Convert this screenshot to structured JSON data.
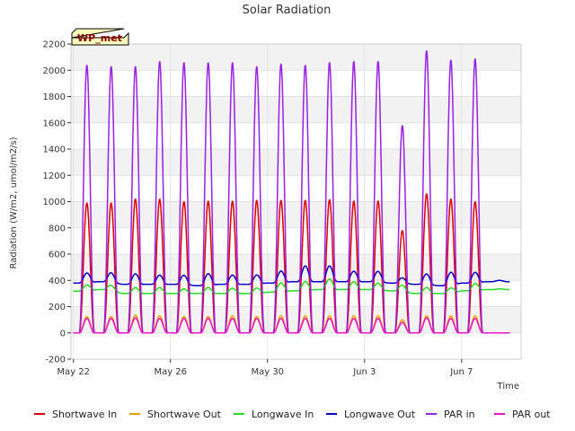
{
  "chart_data": {
    "type": "line",
    "title": "Solar Radiation",
    "xlabel": "Time",
    "ylabel": "Radiation (W/m2, umol/m2/s)",
    "badge": "WP_met",
    "ylim": [
      -200,
      2200
    ],
    "yticks": [
      -200,
      0,
      200,
      400,
      600,
      800,
      1000,
      1200,
      1400,
      1600,
      1800,
      2000,
      2200
    ],
    "xlim": [
      "2022-05-22",
      "2022-06-09"
    ],
    "xticks": [
      {
        "date": "2022-05-22",
        "label": "May 22"
      },
      {
        "date": "2022-05-26",
        "label": "May 26"
      },
      {
        "date": "2022-05-30",
        "label": "May 30"
      },
      {
        "date": "2022-06-03",
        "label": "Jun 3"
      },
      {
        "date": "2022-06-07",
        "label": "Jun 7"
      }
    ],
    "grid": true,
    "legend_position": "bottom",
    "days": [
      "2022-05-22",
      "2022-05-23",
      "2022-05-24",
      "2022-05-25",
      "2022-05-26",
      "2022-05-27",
      "2022-05-28",
      "2022-05-29",
      "2022-05-30",
      "2022-05-31",
      "2022-06-01",
      "2022-06-02",
      "2022-06-03",
      "2022-06-04",
      "2022-06-05",
      "2022-06-06",
      "2022-06-07",
      "2022-06-08"
    ],
    "series": [
      {
        "name": "Shortwave In",
        "color": "#dd0000",
        "night": 0,
        "daily_peak": [
          990,
          990,
          1020,
          1020,
          1000,
          1005,
          1005,
          1010,
          1010,
          1010,
          1015,
          1005,
          1005,
          780,
          1060,
          1020,
          1000,
          0
        ]
      },
      {
        "name": "Shortwave Out",
        "color": "#f0a000",
        "night": 0,
        "daily_peak": [
          125,
          125,
          135,
          130,
          125,
          125,
          130,
          125,
          130,
          130,
          130,
          130,
          130,
          100,
          130,
          130,
          130,
          0
        ]
      },
      {
        "name": "Longwave In",
        "color": "#22dd22",
        "daily_night": [
          318,
          330,
          300,
          300,
          300,
          300,
          300,
          300,
          310,
          320,
          330,
          330,
          330,
          320,
          300,
          300,
          320,
          330
        ],
        "daily_peak": [
          365,
          365,
          345,
          345,
          335,
          345,
          340,
          340,
          380,
          390,
          410,
          390,
          380,
          365,
          345,
          340,
          375,
          335
        ]
      },
      {
        "name": "Longwave Out",
        "color": "#0000cc",
        "daily_night": [
          380,
          390,
          370,
          370,
          370,
          360,
          370,
          370,
          380,
          390,
          390,
          390,
          390,
          380,
          370,
          360,
          380,
          390
        ],
        "daily_peak": [
          455,
          460,
          450,
          440,
          440,
          450,
          440,
          440,
          470,
          510,
          510,
          470,
          470,
          420,
          450,
          460,
          460,
          400
        ]
      },
      {
        "name": "PAR in",
        "color": "#9b1fe0",
        "night": 0,
        "daily_peak": [
          2040,
          2030,
          2030,
          2070,
          2060,
          2060,
          2060,
          2030,
          2050,
          2040,
          2060,
          2070,
          2070,
          1580,
          2150,
          2080,
          2090,
          0
        ]
      },
      {
        "name": "PAR out",
        "color": "#ee11cc",
        "night": 0,
        "daily_peak": [
          110,
          110,
          115,
          110,
          110,
          110,
          110,
          110,
          110,
          110,
          110,
          110,
          110,
          80,
          115,
          110,
          110,
          0
        ]
      }
    ]
  }
}
